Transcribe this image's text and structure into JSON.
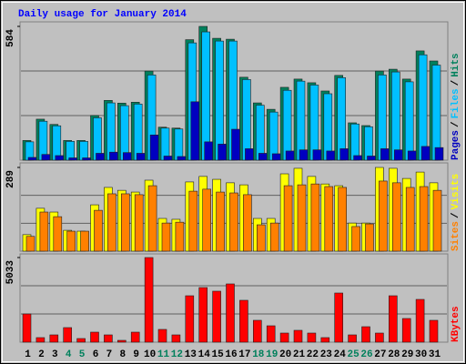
{
  "chart_data": [
    {
      "type": "bar",
      "title": "Daily usage for January 2014",
      "ylim": [
        0,
        584
      ],
      "yticks": [
        584
      ],
      "legend_separator": "/",
      "series": [
        {
          "name": "Hits",
          "color": "#00805c",
          "values": [
            86,
            179,
            156,
            86,
            86,
            195,
            261,
            249,
            253,
            389,
            144,
            140,
            526,
            584,
            532,
            528,
            362,
            250,
            222,
            318,
            354,
            338,
            302,
            370,
            163,
            151,
            389,
            397,
            354,
            477,
            433
          ]
        },
        {
          "name": "Files",
          "color": "#00c0ff",
          "values": [
            80,
            170,
            150,
            82,
            82,
            185,
            250,
            238,
            245,
            372,
            140,
            136,
            512,
            560,
            520,
            520,
            352,
            240,
            210,
            305,
            345,
            328,
            290,
            360,
            158,
            146,
            372,
            385,
            342,
            460,
            415
          ]
        },
        {
          "name": "Pages",
          "color": "#0000c0",
          "values": [
            12,
            25,
            20,
            10,
            10,
            30,
            35,
            33,
            30,
            110,
            18,
            16,
            255,
            80,
            70,
            135,
            50,
            30,
            28,
            40,
            45,
            45,
            40,
            50,
            20,
            18,
            50,
            45,
            40,
            60,
            55
          ]
        }
      ]
    },
    {
      "type": "bar",
      "ylim": [
        0,
        289
      ],
      "yticks": [
        289
      ],
      "legend_separator": "/",
      "series": [
        {
          "name": "Visits",
          "color": "#ffff00",
          "values": [
            57,
            148,
            135,
            72,
            69,
            160,
            220,
            210,
            204,
            245,
            113,
            110,
            239,
            258,
            248,
            236,
            229,
            113,
            113,
            267,
            286,
            258,
            232,
            226,
            97,
            97,
            289,
            286,
            251,
            273,
            236
          ]
        },
        {
          "name": "Sites",
          "color": "#ff8000",
          "values": [
            51,
            135,
            119,
            69,
            69,
            141,
            198,
            198,
            195,
            226,
            97,
            100,
            207,
            214,
            204,
            201,
            195,
            91,
            97,
            226,
            229,
            232,
            223,
            220,
            85,
            94,
            242,
            236,
            220,
            223,
            210
          ]
        }
      ]
    },
    {
      "type": "bar",
      "ylim": [
        0,
        5033
      ],
      "yticks": [
        5033
      ],
      "series": [
        {
          "name": "KBytes",
          "color": "#ff0000",
          "values": [
            1677,
            271,
            433,
            866,
            216,
            595,
            433,
            108,
            595,
            5033,
            758,
            433,
            2760,
            3247,
            3031,
            3464,
            2490,
            1299,
            974,
            541,
            704,
            541,
            271,
            2922,
            433,
            920,
            541,
            2760,
            1407,
            2543,
            1299
          ]
        }
      ],
      "categories": [
        "1",
        "2",
        "3",
        "4",
        "5",
        "6",
        "7",
        "8",
        "9",
        "10",
        "11",
        "12",
        "13",
        "14",
        "15",
        "16",
        "17",
        "18",
        "19",
        "20",
        "21",
        "22",
        "23",
        "24",
        "25",
        "26",
        "27",
        "28",
        "29",
        "30",
        "31"
      ],
      "category_colors": [
        "#000000",
        "#000000",
        "#000000",
        "#00805c",
        "#00805c",
        "#000000",
        "#000000",
        "#000000",
        "#000000",
        "#000000",
        "#00805c",
        "#00805c",
        "#000000",
        "#000000",
        "#000000",
        "#000000",
        "#000000",
        "#00805c",
        "#00805c",
        "#000000",
        "#000000",
        "#000000",
        "#000000",
        "#000000",
        "#00805c",
        "#00805c",
        "#000000",
        "#000000",
        "#000000",
        "#000000",
        "#000000"
      ]
    }
  ]
}
